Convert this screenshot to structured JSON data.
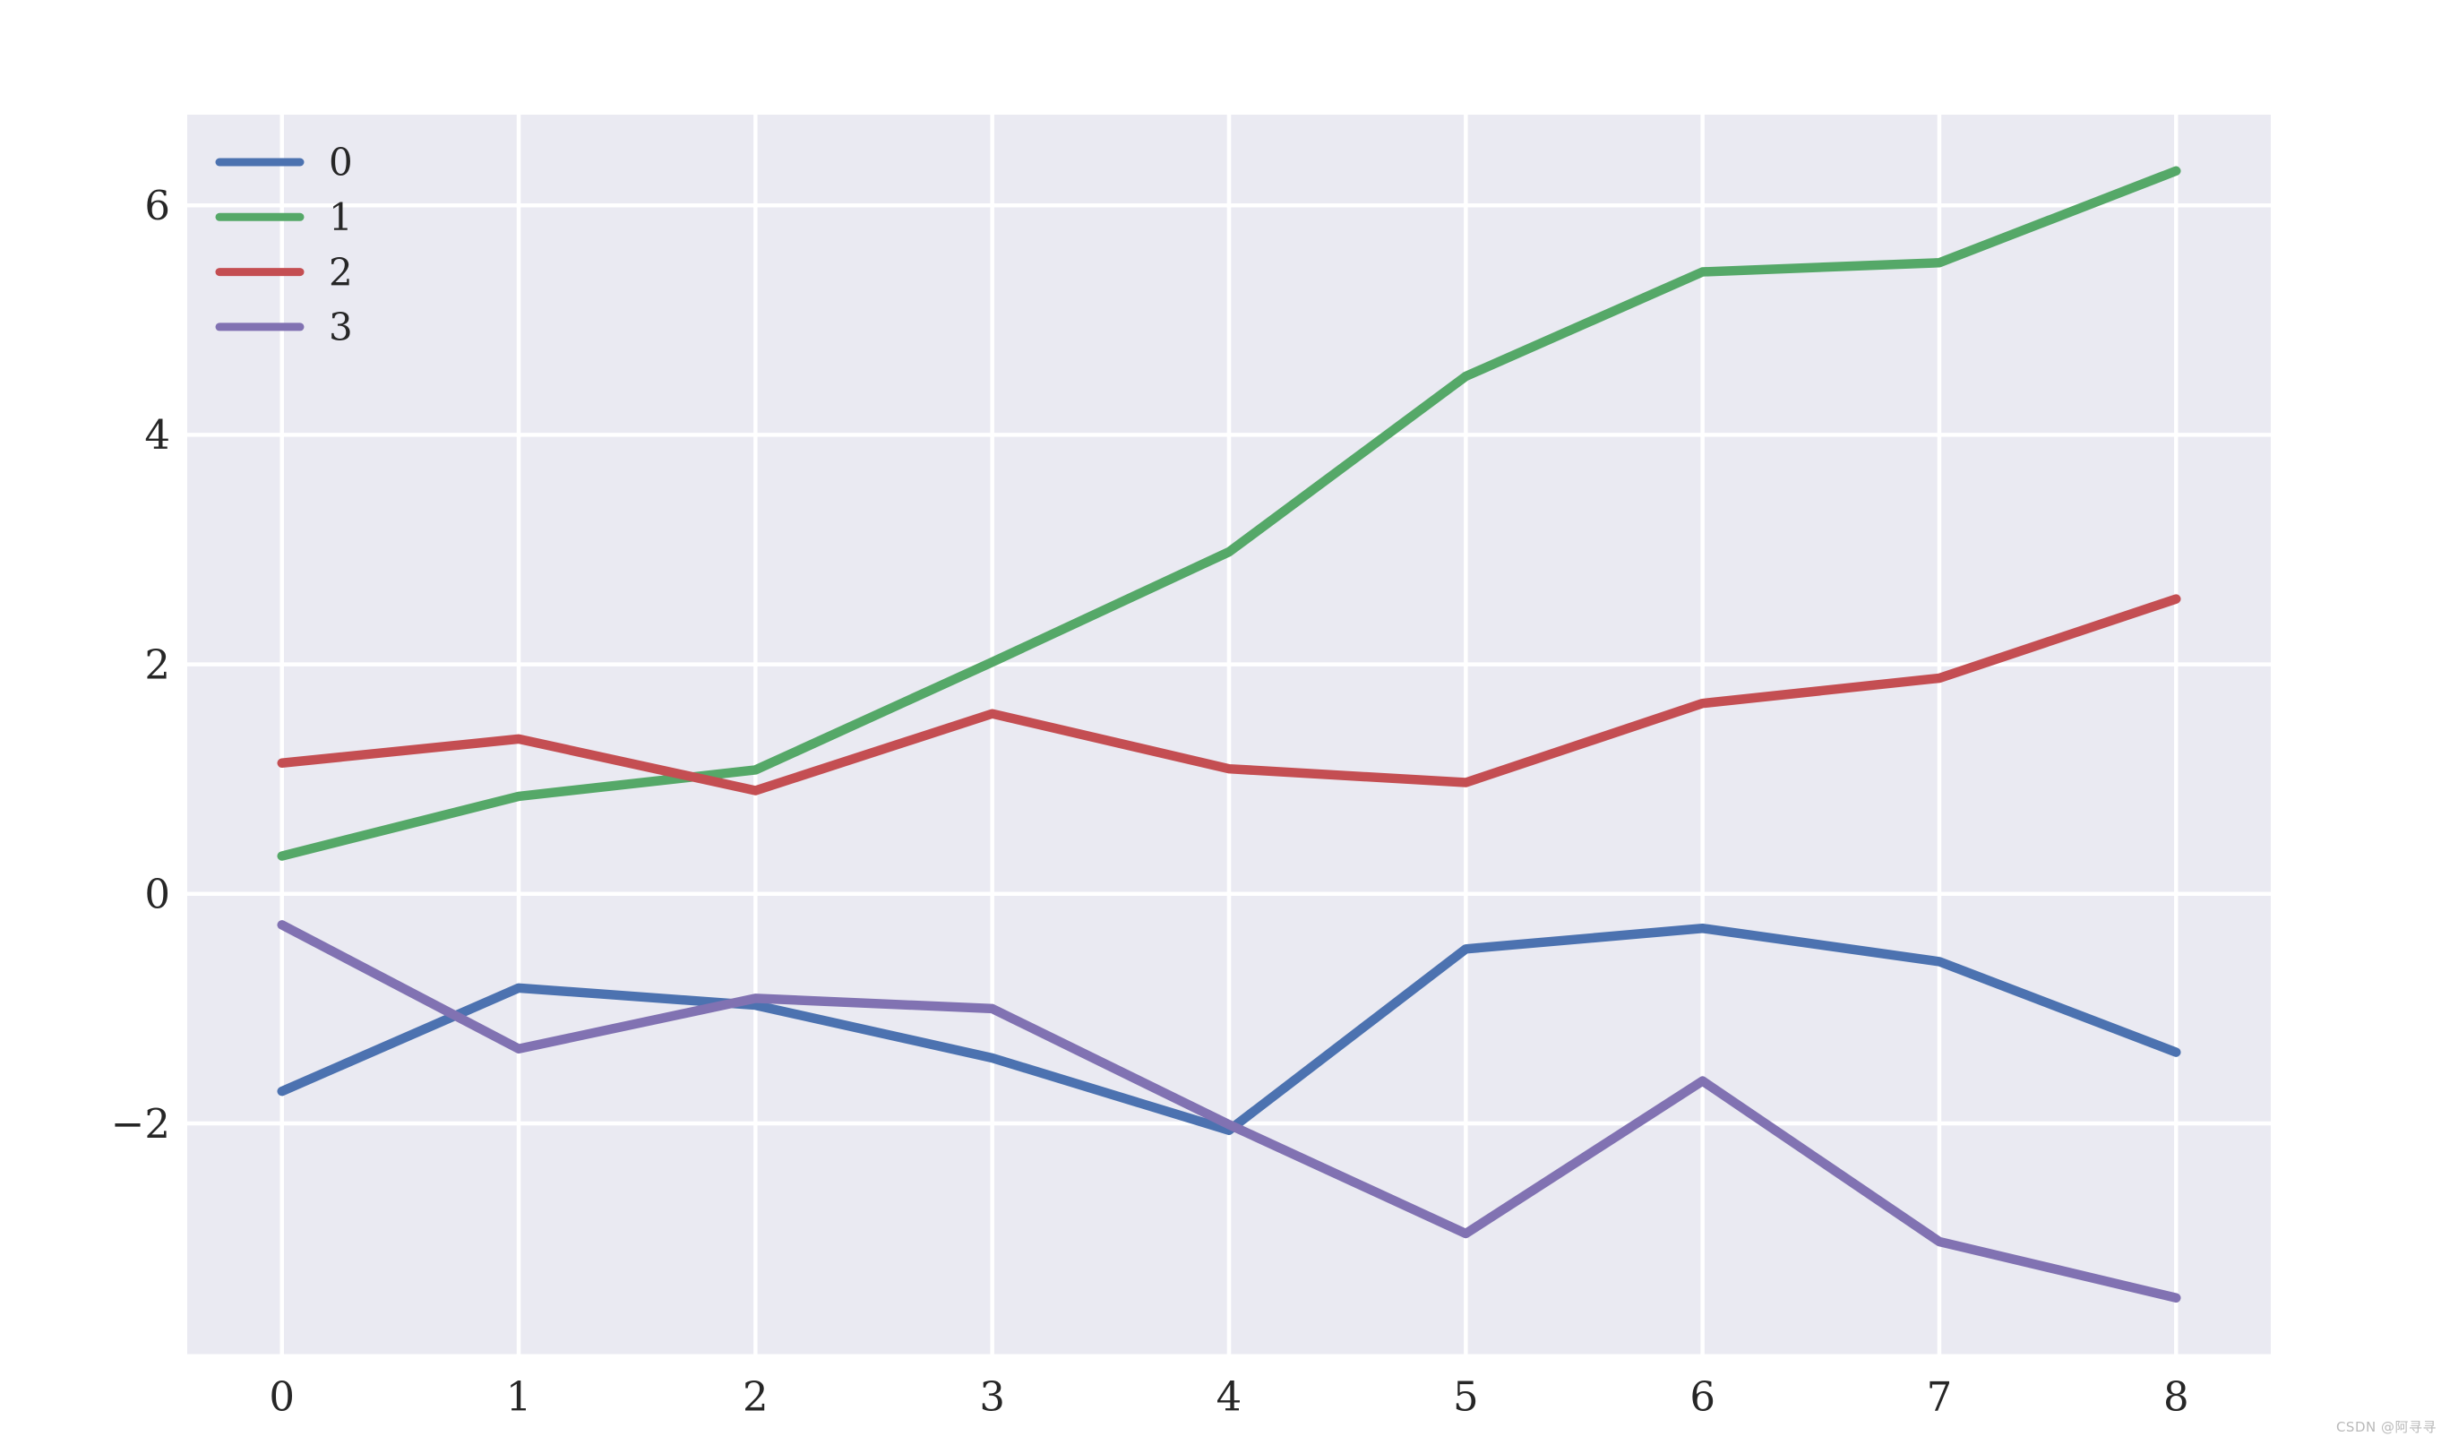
{
  "chart_data": {
    "type": "line",
    "title": "",
    "xlabel": "",
    "ylabel": "",
    "x": [
      0,
      1,
      2,
      3,
      4,
      5,
      6,
      7,
      8
    ],
    "series": [
      {
        "name": "0",
        "color": "#4C72B0",
        "values": [
          -1.72,
          -0.82,
          -0.97,
          -1.43,
          -2.06,
          -0.48,
          -0.3,
          -0.59,
          -1.38
        ]
      },
      {
        "name": "1",
        "color": "#55A868",
        "values": [
          0.33,
          0.85,
          1.08,
          2.02,
          2.98,
          4.51,
          5.42,
          5.5,
          6.3
        ]
      },
      {
        "name": "2",
        "color": "#C44E52",
        "values": [
          1.14,
          1.35,
          0.9,
          1.57,
          1.09,
          0.97,
          1.66,
          1.88,
          2.57
        ]
      },
      {
        "name": "3",
        "color": "#8172B2",
        "values": [
          -0.27,
          -1.35,
          -0.91,
          -1.0,
          -2.01,
          -2.96,
          -1.63,
          -3.03,
          -3.52
        ]
      }
    ],
    "xlim": [
      -0.4,
      8.4
    ],
    "ylim": [
      -4.01,
      6.79
    ],
    "x_ticks": [
      0,
      1,
      2,
      3,
      4,
      5,
      6,
      7,
      8
    ],
    "y_ticks": [
      -2,
      0,
      2,
      4,
      6
    ],
    "grid": true,
    "legend_position": "upper left",
    "legend_labels": [
      "0",
      "1",
      "2",
      "3"
    ],
    "plot_background": "#EAEAF2",
    "grid_color": "#FFFFFF",
    "text_color": "#262626",
    "page_background": "#FFFFFF"
  },
  "watermark": {
    "text": "CSDN @阿寻寻",
    "color": "#b9b9b9"
  }
}
